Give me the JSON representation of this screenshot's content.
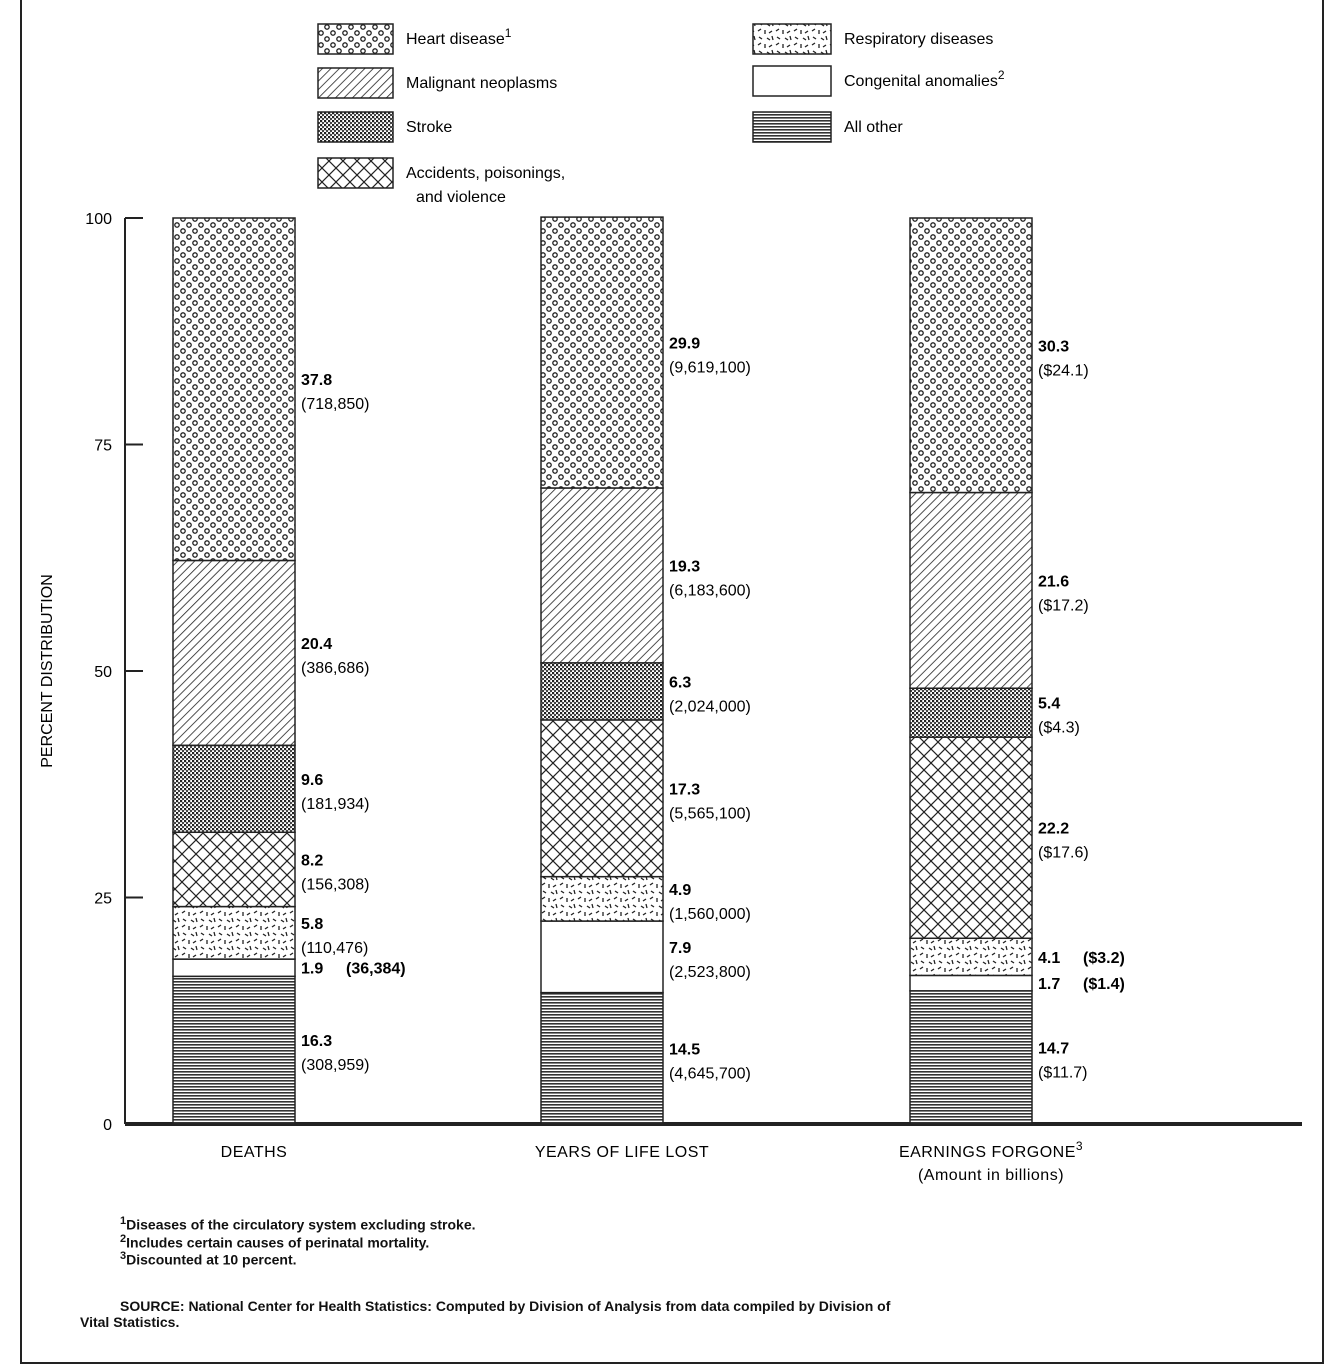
{
  "chart_data": {
    "type": "bar",
    "stacked": true,
    "ylabel": "PERCENT DISTRIBUTION",
    "ylim": [
      0,
      100
    ],
    "yticks": [
      0,
      25,
      50,
      75,
      100
    ],
    "categories": [
      {
        "label": "DEATHS",
        "sup": "",
        "sub": ""
      },
      {
        "label": "YEARS OF LIFE LOST",
        "sup": "",
        "sub": ""
      },
      {
        "label": "EARNINGS FORGONE",
        "sup": "3",
        "sub": "(Amount in billions)"
      }
    ],
    "series": [
      {
        "name": "All other",
        "sup": "",
        "pattern": "hlines",
        "values": [
          16.3,
          14.5,
          14.7
        ],
        "labels": [
          "(308,959)",
          "(4,645,700)",
          "($11.7)"
        ]
      },
      {
        "name": "Congenital anomalies",
        "sup": "2",
        "pattern": "blank",
        "values": [
          1.9,
          7.9,
          1.7
        ],
        "labels": [
          "(36,384)",
          "(2,523,800)",
          "($1.4)"
        ]
      },
      {
        "name": "Respiratory diseases",
        "sup": "",
        "pattern": "dashes",
        "values": [
          5.8,
          4.9,
          4.1
        ],
        "labels": [
          "(110,476)",
          "(1,560,000)",
          "($3.2)"
        ]
      },
      {
        "name": "Accidents, poisonings,|and violence",
        "sup": "",
        "pattern": "crosshatch",
        "values": [
          8.2,
          17.3,
          22.2
        ],
        "labels": [
          "(156,308)",
          "(5,565,100)",
          "($17.6)"
        ]
      },
      {
        "name": "Stroke",
        "sup": "",
        "pattern": "dots",
        "values": [
          9.6,
          6.3,
          5.4
        ],
        "labels": [
          "(181,934)",
          "(2,024,000)",
          "($4.3)"
        ]
      },
      {
        "name": "Malignant neoplasms",
        "sup": "",
        "pattern": "diagonal",
        "values": [
          20.4,
          19.3,
          21.6
        ],
        "labels": [
          "(386,686)",
          "(6,183,600)",
          "($17.2)"
        ]
      },
      {
        "name": "Heart disease",
        "sup": "1",
        "pattern": "circles",
        "values": [
          37.8,
          29.9,
          30.3
        ],
        "labels": [
          "(718,850)",
          "(9,619,100)",
          "($24.1)"
        ]
      }
    ],
    "legend_order": [
      6,
      5,
      4,
      3,
      2,
      1,
      0
    ],
    "legend_placement": "top",
    "grid": false
  },
  "footnotes": [
    {
      "mark": "1",
      "text": "Diseases of the circulatory system excluding stroke."
    },
    {
      "mark": "2",
      "text": "Includes certain causes of perinatal mortality."
    },
    {
      "mark": "3",
      "text": "Discounted at 10 percent."
    }
  ],
  "source": {
    "line1": "SOURCE: National Center for Health Statistics: Computed by Division of Analysis from data compiled by Division of",
    "line2": "Vital Statistics."
  }
}
